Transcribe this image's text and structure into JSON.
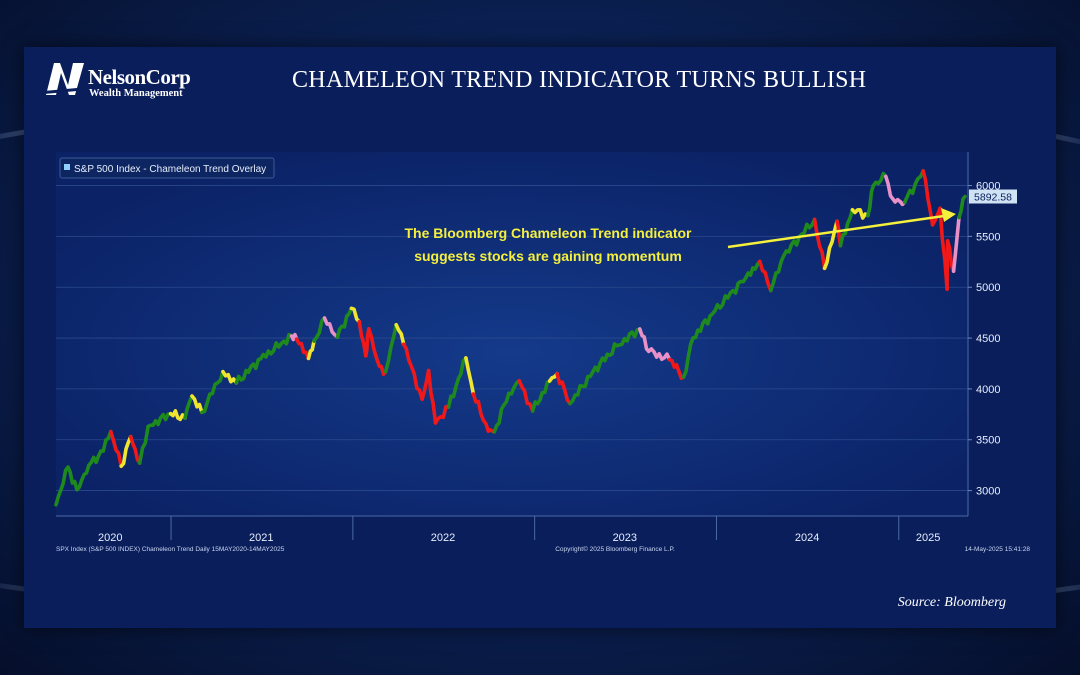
{
  "page": {
    "title": "CHAMELEON TREND INDICATOR TURNS BULLISH",
    "logo_name": "NelsonCorp",
    "logo_sub": "Wealth Management",
    "source": "Source: Bloomberg"
  },
  "colors": {
    "panel_bg": "#0a1e5c",
    "bullish": "#1e8a1e",
    "bearish": "#f01818",
    "neutral": "#f0e630",
    "caution": "#e890c8",
    "annotation": "#f5f03c",
    "last_price_box": "#cfe3f5"
  },
  "chart_data": {
    "type": "line",
    "legend": "S&P 500 Index - Chameleon Trend Overlay",
    "footer_left": "SPX Index (S&P 500 INDEX) Chameleon Trend  Daily 15MAY2020-14MAY2025",
    "footer_center": "Copyright© 2025 Bloomberg Finance L.P.",
    "footer_right": "14-May-2025 15:41:28",
    "annotation": [
      "The Bloomberg Chameleon Trend indicator",
      "suggests stocks are gaining momentum"
    ],
    "last_price": "5892.58",
    "x_labels": [
      "2020",
      "2021",
      "2022",
      "2023",
      "2024",
      "2025"
    ],
    "y_ticks": [
      3000,
      3500,
      4000,
      4500,
      5000,
      5500,
      6000
    ],
    "ylim": [
      2750,
      6330
    ],
    "xlim": [
      "2020-05-15",
      "2025-05-20"
    ],
    "series": [
      {
        "values": [
          [
            "2020-05-15",
            2860,
            "bullish"
          ],
          [
            "2020-06-08",
            3230,
            "bullish"
          ],
          [
            "2020-06-26",
            3010,
            "bullish"
          ],
          [
            "2020-07-20",
            3250,
            "bullish"
          ],
          [
            "2020-08-18",
            3390,
            "bullish"
          ],
          [
            "2020-09-02",
            3580,
            "bullish"
          ],
          [
            "2020-09-23",
            3240,
            "bearish"
          ],
          [
            "2020-10-12",
            3530,
            "neutral"
          ],
          [
            "2020-10-30",
            3270,
            "bearish"
          ],
          [
            "2020-11-16",
            3630,
            "bullish"
          ],
          [
            "2020-12-31",
            3756,
            "bullish"
          ],
          [
            "2021-01-29",
            3714,
            "neutral"
          ],
          [
            "2021-02-12",
            3930,
            "bullish"
          ],
          [
            "2021-03-04",
            3770,
            "neutral"
          ],
          [
            "2021-04-15",
            4170,
            "bullish"
          ],
          [
            "2021-05-12",
            4060,
            "neutral"
          ],
          [
            "2021-06-30",
            4297,
            "bullish"
          ],
          [
            "2021-08-31",
            4520,
            "bullish"
          ],
          [
            "2021-09-10",
            4490,
            "caution"
          ],
          [
            "2021-10-04",
            4300,
            "bearish"
          ],
          [
            "2021-10-15",
            4470,
            "neutral"
          ],
          [
            "2021-11-05",
            4697,
            "bullish"
          ],
          [
            "2021-12-01",
            4510,
            "caution"
          ],
          [
            "2021-12-29",
            4793,
            "bullish"
          ],
          [
            "2022-01-14",
            4660,
            "neutral"
          ],
          [
            "2022-01-27",
            4326,
            "bearish"
          ],
          [
            "2022-02-02",
            4590,
            "bearish"
          ],
          [
            "2022-02-23",
            4225,
            "bearish"
          ],
          [
            "2022-03-08",
            4170,
            "bearish"
          ],
          [
            "2022-03-29",
            4630,
            "bullish"
          ],
          [
            "2022-04-13",
            4440,
            "neutral"
          ],
          [
            "2022-05-20",
            3900,
            "bearish"
          ],
          [
            "2022-06-02",
            4180,
            "bearish"
          ],
          [
            "2022-06-16",
            3666,
            "bearish"
          ],
          [
            "2022-07-12",
            3820,
            "bearish"
          ],
          [
            "2022-08-16",
            4305,
            "bullish"
          ],
          [
            "2022-08-31",
            3950,
            "neutral"
          ],
          [
            "2022-09-30",
            3585,
            "bearish"
          ],
          [
            "2022-10-12",
            3577,
            "bearish"
          ],
          [
            "2022-11-10",
            3956,
            "bullish"
          ],
          [
            "2022-12-01",
            4080,
            "bullish"
          ],
          [
            "2022-12-28",
            3783,
            "bearish"
          ],
          [
            "2023-01-31",
            4077,
            "bullish"
          ],
          [
            "2023-02-15",
            4150,
            "neutral"
          ],
          [
            "2023-03-13",
            3855,
            "bearish"
          ],
          [
            "2023-04-28",
            4169,
            "bullish"
          ],
          [
            "2023-06-15",
            4425,
            "bullish"
          ],
          [
            "2023-07-31",
            4589,
            "bullish"
          ],
          [
            "2023-08-18",
            4370,
            "caution"
          ],
          [
            "2023-09-29",
            4288,
            "caution"
          ],
          [
            "2023-10-27",
            4117,
            "bearish"
          ],
          [
            "2023-11-15",
            4502,
            "bullish"
          ],
          [
            "2023-12-29",
            4770,
            "bullish"
          ],
          [
            "2024-02-29",
            5096,
            "bullish"
          ],
          [
            "2024-03-28",
            5254,
            "bullish"
          ],
          [
            "2024-04-19",
            4967,
            "bearish"
          ],
          [
            "2024-05-15",
            5308,
            "bullish"
          ],
          [
            "2024-07-16",
            5667,
            "bullish"
          ],
          [
            "2024-08-05",
            5186,
            "bearish"
          ],
          [
            "2024-08-30",
            5648,
            "neutral"
          ],
          [
            "2024-09-06",
            5408,
            "bearish"
          ],
          [
            "2024-09-30",
            5762,
            "bullish"
          ],
          [
            "2024-10-31",
            5705,
            "neutral"
          ],
          [
            "2024-11-11",
            6001,
            "bullish"
          ],
          [
            "2024-12-06",
            6090,
            "bullish"
          ],
          [
            "2024-12-20",
            5870,
            "caution"
          ],
          [
            "2025-01-13",
            5836,
            "caution"
          ],
          [
            "2025-02-19",
            6144,
            "bullish"
          ],
          [
            "2025-03-10",
            5614,
            "bearish"
          ],
          [
            "2025-03-25",
            5776,
            "bearish"
          ],
          [
            "2025-04-08",
            4982,
            "bearish"
          ],
          [
            "2025-04-09",
            5456,
            "bearish"
          ],
          [
            "2025-04-21",
            5158,
            "bearish"
          ],
          [
            "2025-05-02",
            5686,
            "caution"
          ],
          [
            "2025-05-14",
            5892.58,
            "bullish"
          ]
        ]
      }
    ]
  }
}
